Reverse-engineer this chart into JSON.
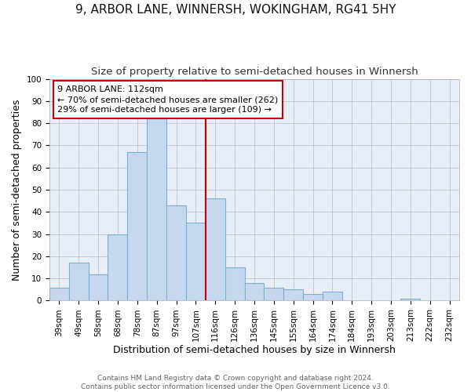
{
  "title": "9, ARBOR LANE, WINNERSH, WOKINGHAM, RG41 5HY",
  "subtitle": "Size of property relative to semi-detached houses in Winnersh",
  "xlabel": "Distribution of semi-detached houses by size in Winnersh",
  "ylabel": "Number of semi-detached properties",
  "categories": [
    "39sqm",
    "49sqm",
    "58sqm",
    "68sqm",
    "78sqm",
    "87sqm",
    "97sqm",
    "107sqm",
    "116sqm",
    "126sqm",
    "136sqm",
    "145sqm",
    "155sqm",
    "164sqm",
    "174sqm",
    "184sqm",
    "193sqm",
    "203sqm",
    "213sqm",
    "222sqm",
    "232sqm"
  ],
  "values": [
    6,
    17,
    12,
    30,
    67,
    82,
    43,
    35,
    46,
    15,
    8,
    6,
    5,
    3,
    4,
    0,
    0,
    0,
    1,
    0,
    0
  ],
  "bar_color": "#c5d8f0",
  "bar_edge_color": "#7bafd4",
  "line_color": "#cc0000",
  "annotation_line1": "9 ARBOR LANE: 112sqm",
  "annotation_line2": "← 70% of semi-detached houses are smaller (262)",
  "annotation_line3": "29% of semi-detached houses are larger (109) →",
  "annotation_box_color": "#ffffff",
  "annotation_box_edge": "#cc0000",
  "footer_line1": "Contains HM Land Registry data © Crown copyright and database right 2024.",
  "footer_line2": "Contains public sector information licensed under the Open Government Licence v3.0.",
  "ylim": [
    0,
    100
  ],
  "title_fontsize": 11,
  "subtitle_fontsize": 9.5,
  "axis_label_fontsize": 9,
  "tick_fontsize": 7.5,
  "footer_fontsize": 6.5,
  "annotation_fontsize": 8,
  "background_color": "#e8eef8"
}
